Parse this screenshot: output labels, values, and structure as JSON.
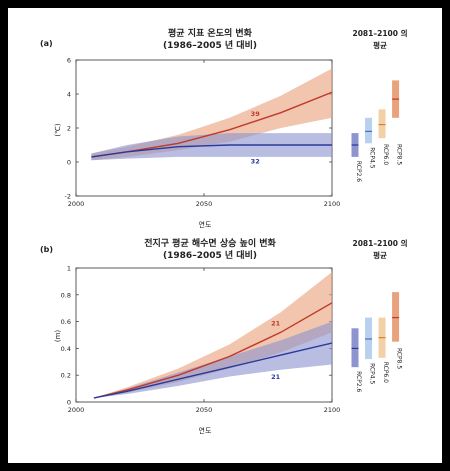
{
  "chart_data": [
    {
      "type": "line",
      "panel": "(a)",
      "title": "평균 지표 온도의 변화",
      "subtitle": "(1986–2005 년 대비)",
      "xlabel": "연도",
      "ylabel": "(℃)",
      "xlim": [
        2000,
        2100
      ],
      "ylim": [
        -2,
        6
      ],
      "xticks": [
        "2000",
        "2050",
        "2100"
      ],
      "yticks": [
        "-2",
        "0",
        "2",
        "4",
        "6"
      ],
      "grid": false,
      "series": [
        {
          "name": "RCP8.5",
          "color": "#c0392b",
          "band_color": "#e8a27d",
          "x": [
            2006,
            2020,
            2040,
            2060,
            2080,
            2100
          ],
          "y": [
            0.3,
            0.6,
            1.1,
            1.9,
            2.9,
            4.1
          ],
          "lower": [
            0.1,
            0.3,
            0.7,
            1.2,
            2.0,
            2.6
          ],
          "upper": [
            0.5,
            0.9,
            1.6,
            2.6,
            3.9,
            5.5
          ]
        },
        {
          "name": "RCP2.6",
          "color": "#2a3a9a",
          "band_color": "#8d94cf",
          "x": [
            2006,
            2020,
            2040,
            2060,
            2080,
            2100
          ],
          "y": [
            0.3,
            0.6,
            0.9,
            1.0,
            1.0,
            1.0
          ],
          "lower": [
            0.1,
            0.2,
            0.3,
            0.3,
            0.3,
            0.3
          ],
          "upper": [
            0.5,
            1.0,
            1.5,
            1.7,
            1.7,
            1.7
          ]
        }
      ],
      "annotations": [
        {
          "text": "39",
          "series": "RCP8.5",
          "x": 2070,
          "y": 2.7
        },
        {
          "text": "32",
          "series": "RCP2.6",
          "x": 2070,
          "y": -0.1
        }
      ],
      "sidebar": {
        "title": "2081–2100 의\n평균",
        "bars": [
          {
            "name": "RCP2.6",
            "min": 0.3,
            "max": 1.7,
            "mean": 1.0,
            "color": "#8d94cf",
            "line": "#2a3a9a"
          },
          {
            "name": "RCP4.5",
            "min": 1.1,
            "max": 2.6,
            "mean": 1.8,
            "color": "#b9d0ee",
            "line": "#4a6fb5"
          },
          {
            "name": "RCP6.0",
            "min": 1.4,
            "max": 3.1,
            "mean": 2.2,
            "color": "#f3d1a6",
            "line": "#d9812e"
          },
          {
            "name": "RCP8.5",
            "min": 2.6,
            "max": 4.8,
            "mean": 3.7,
            "color": "#e8a27d",
            "line": "#c0392b"
          }
        ]
      }
    },
    {
      "type": "line",
      "panel": "(b)",
      "title": "전지구 평균 해수면 상승 높이 변화",
      "subtitle": "(1986–2005 년 대비)",
      "xlabel": "연도",
      "ylabel": "(m)",
      "xlim": [
        2000,
        2100
      ],
      "ylim": [
        0,
        1
      ],
      "xticks": [
        "2000",
        "2050",
        "2100"
      ],
      "yticks": [
        "0",
        "0.2",
        "0.4",
        "0.6",
        "0.8",
        "1"
      ],
      "grid": false,
      "series": [
        {
          "name": "RCP8.5",
          "color": "#c0392b",
          "band_color": "#e8a27d",
          "x": [
            2007,
            2020,
            2040,
            2060,
            2080,
            2100
          ],
          "y": [
            0.03,
            0.09,
            0.2,
            0.34,
            0.52,
            0.74
          ],
          "lower": [
            0.03,
            0.07,
            0.15,
            0.25,
            0.37,
            0.52
          ],
          "upper": [
            0.03,
            0.11,
            0.25,
            0.43,
            0.67,
            0.97
          ]
        },
        {
          "name": "RCP2.6",
          "color": "#2a3a9a",
          "band_color": "#8d94cf",
          "x": [
            2007,
            2020,
            2040,
            2060,
            2080,
            2100
          ],
          "y": [
            0.03,
            0.08,
            0.17,
            0.26,
            0.35,
            0.44
          ],
          "lower": [
            0.03,
            0.06,
            0.12,
            0.19,
            0.24,
            0.28
          ],
          "upper": [
            0.03,
            0.1,
            0.22,
            0.34,
            0.46,
            0.6
          ]
        }
      ],
      "annotations": [
        {
          "text": "21",
          "series": "RCP8.5",
          "x": 2078,
          "y": 0.57
        },
        {
          "text": "21",
          "series": "RCP2.6",
          "x": 2078,
          "y": 0.17
        }
      ],
      "sidebar": {
        "title": "2081–2100 의\n평균",
        "bars": [
          {
            "name": "RCP2.6",
            "min": 0.26,
            "max": 0.55,
            "mean": 0.4,
            "color": "#8d94cf",
            "line": "#2a3a9a"
          },
          {
            "name": "RCP4.5",
            "min": 0.32,
            "max": 0.63,
            "mean": 0.47,
            "color": "#b9d0ee",
            "line": "#4a6fb5"
          },
          {
            "name": "RCP6.0",
            "min": 0.33,
            "max": 0.63,
            "mean": 0.48,
            "color": "#f3d1a6",
            "line": "#d9812e"
          },
          {
            "name": "RCP8.5",
            "min": 0.45,
            "max": 0.82,
            "mean": 0.63,
            "color": "#e8a27d",
            "line": "#c0392b"
          }
        ]
      }
    }
  ]
}
